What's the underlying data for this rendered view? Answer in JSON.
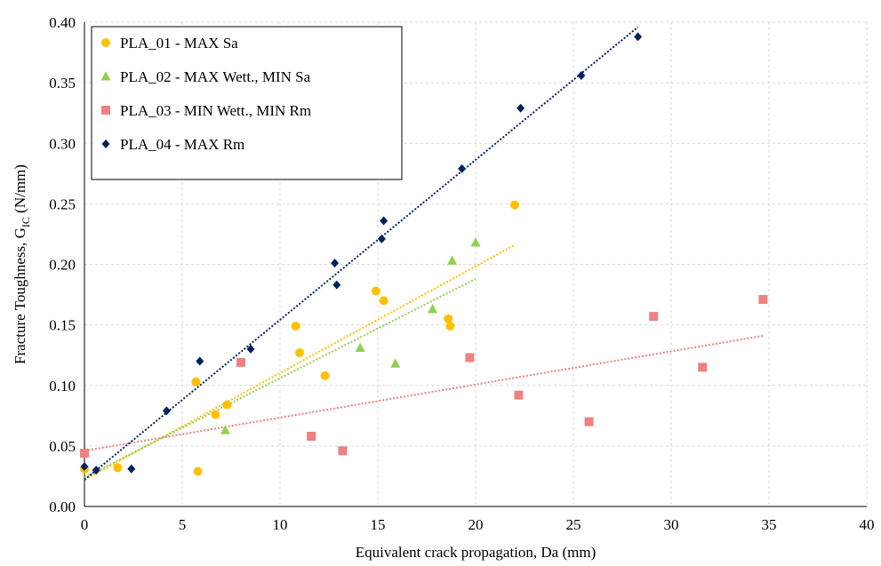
{
  "chart_data": {
    "type": "scatter",
    "xlabel": "Equivalent crack propagation, Da (mm)",
    "ylabel_main": "Fracture Toughness, G",
    "ylabel_sub": "IC",
    "ylabel_unit": " (N/mm)",
    "xlim": [
      0,
      40
    ],
    "ylim": [
      0,
      0.4
    ],
    "x_ticks": [
      "0",
      "5",
      "10",
      "15",
      "20",
      "25",
      "30",
      "35",
      "40"
    ],
    "y_ticks": [
      "0.00",
      "0.05",
      "0.10",
      "0.15",
      "0.20",
      "0.25",
      "0.30",
      "0.35",
      "0.40"
    ],
    "grid": true,
    "legend_position": "top-left",
    "series": [
      {
        "name": "PLA_01 - MAX Sa",
        "color": "#ffc000",
        "marker": "circle",
        "points": [
          [
            0,
            0.031
          ],
          [
            1.7,
            0.032
          ],
          [
            5.7,
            0.103
          ],
          [
            5.8,
            0.029
          ],
          [
            6.7,
            0.076
          ],
          [
            7.3,
            0.084
          ],
          [
            10.8,
            0.149
          ],
          [
            11.0,
            0.127
          ],
          [
            12.3,
            0.108
          ],
          [
            14.9,
            0.178
          ],
          [
            15.3,
            0.17
          ],
          [
            18.6,
            0.155
          ],
          [
            18.7,
            0.149
          ],
          [
            22.0,
            0.249
          ]
        ],
        "trend": [
          [
            0,
            0.022
          ],
          [
            22.0,
            0.216
          ]
        ]
      },
      {
        "name": "PLA_02 - MAX Wett., MIN Sa",
        "color": "#92d050",
        "marker": "triangle",
        "points": [
          [
            7.2,
            0.063
          ],
          [
            14.1,
            0.131
          ],
          [
            15.9,
            0.118
          ],
          [
            17.8,
            0.163
          ],
          [
            18.8,
            0.203
          ],
          [
            20.0,
            0.218
          ]
        ],
        "trend": [
          [
            0,
            0.024
          ],
          [
            20.0,
            0.188
          ]
        ]
      },
      {
        "name": "PLA_03 - MIN Wett., MIN Rm",
        "color": "#f08080",
        "marker": "square",
        "points": [
          [
            0,
            0.044
          ],
          [
            8.0,
            0.119
          ],
          [
            11.6,
            0.058
          ],
          [
            13.2,
            0.046
          ],
          [
            19.7,
            0.123
          ],
          [
            22.2,
            0.092
          ],
          [
            25.8,
            0.07
          ],
          [
            29.1,
            0.157
          ],
          [
            31.6,
            0.115
          ],
          [
            34.7,
            0.171
          ]
        ],
        "trend": [
          [
            0,
            0.046
          ],
          [
            34.7,
            0.141
          ]
        ]
      },
      {
        "name": "PLA_04 - MAX Rm",
        "color": "#002060",
        "marker": "diamond",
        "points": [
          [
            0,
            0.033
          ],
          [
            0.6,
            0.03
          ],
          [
            2.4,
            0.031
          ],
          [
            4.2,
            0.079
          ],
          [
            5.9,
            0.12
          ],
          [
            8.5,
            0.13
          ],
          [
            12.8,
            0.201
          ],
          [
            12.9,
            0.183
          ],
          [
            15.2,
            0.221
          ],
          [
            15.3,
            0.236
          ],
          [
            19.3,
            0.279
          ],
          [
            22.3,
            0.329
          ],
          [
            25.4,
            0.356
          ],
          [
            28.3,
            0.388
          ]
        ],
        "trend": [
          [
            0,
            0.022
          ],
          [
            28.3,
            0.396
          ]
        ]
      }
    ]
  }
}
